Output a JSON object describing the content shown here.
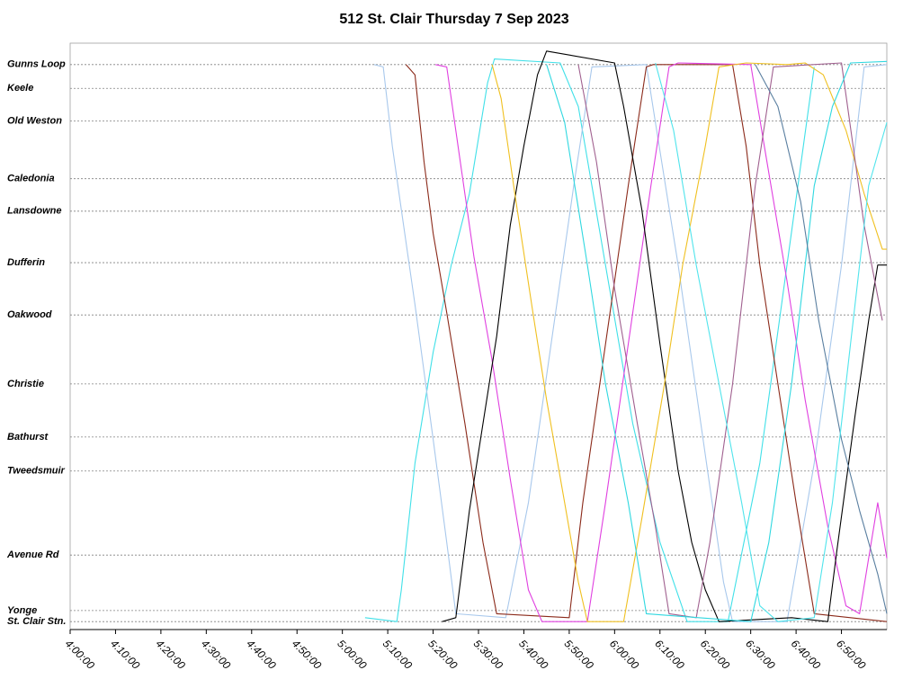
{
  "chart_data": {
    "type": "line",
    "title": "512 St. Clair Thursday 7 Sep 2023",
    "xlim": [
      240,
      420
    ],
    "xticks": [
      {
        "value": 240,
        "label": "4:00:00"
      },
      {
        "value": 250,
        "label": "4:10:00"
      },
      {
        "value": 260,
        "label": "4:20:00"
      },
      {
        "value": 270,
        "label": "4:30:00"
      },
      {
        "value": 280,
        "label": "4:40:00"
      },
      {
        "value": 290,
        "label": "4:50:00"
      },
      {
        "value": 300,
        "label": "5:00:00"
      },
      {
        "value": 310,
        "label": "5:10:00"
      },
      {
        "value": 320,
        "label": "5:20:00"
      },
      {
        "value": 330,
        "label": "5:30:00"
      },
      {
        "value": 340,
        "label": "5:40:00"
      },
      {
        "value": 350,
        "label": "5:50:00"
      },
      {
        "value": 360,
        "label": "6:00:00"
      },
      {
        "value": 370,
        "label": "6:10:00"
      },
      {
        "value": 380,
        "label": "6:20:00"
      },
      {
        "value": 390,
        "label": "6:30:00"
      },
      {
        "value": 400,
        "label": "6:40:00"
      },
      {
        "value": 410,
        "label": "6:50:00"
      }
    ],
    "ylim": [
      -0.1,
      7.3
    ],
    "yticks": [
      {
        "value": 7.03,
        "label": "Gunns Loop"
      },
      {
        "value": 6.73,
        "label": "Keele"
      },
      {
        "value": 6.32,
        "label": "Old Weston"
      },
      {
        "value": 5.59,
        "label": "Caledonia"
      },
      {
        "value": 5.18,
        "label": "Lansdowne"
      },
      {
        "value": 4.53,
        "label": "Dufferin"
      },
      {
        "value": 3.87,
        "label": "Oakwood"
      },
      {
        "value": 3.0,
        "label": "Christie"
      },
      {
        "value": 2.33,
        "label": "Bathurst"
      },
      {
        "value": 1.9,
        "label": "Tweedsmuir"
      },
      {
        "value": 0.84,
        "label": "Avenue Rd"
      },
      {
        "value": 0.14,
        "label": "Yonge"
      },
      {
        "value": 0,
        "label": "St. Clair Stn."
      }
    ],
    "grid": true,
    "series": [
      {
        "color": "#40e0e8",
        "x": [
          305,
          312,
          313,
          316,
          320,
          324,
          328,
          332,
          333.5,
          348,
          352,
          358,
          364,
          370,
          376,
          385,
          392,
          398,
          404
        ],
        "values": [
          0.05,
          0,
          0.4,
          2.0,
          3.4,
          4.5,
          5.4,
          6.8,
          7.1,
          7.05,
          6.5,
          4.5,
          2.5,
          1.0,
          0,
          0,
          2.0,
          4.5,
          7.0
        ]
      },
      {
        "color": "#a8c8ec",
        "x": [
          307,
          309,
          311,
          313,
          316,
          320,
          323,
          325,
          336,
          341,
          346,
          351,
          355,
          367,
          369,
          374,
          379,
          384,
          386,
          398,
          404,
          410,
          415,
          420
        ],
        "values": [
          7.03,
          7.0,
          6.0,
          5.2,
          4.0,
          2.3,
          1.0,
          0.1,
          0.05,
          1.5,
          3.5,
          5.5,
          7.0,
          7.03,
          6.3,
          4.5,
          2.5,
          0.5,
          0,
          0,
          2.0,
          4.5,
          7.0,
          7.03
        ]
      },
      {
        "color": "#8b2a1a",
        "x": [
          314,
          316,
          318,
          320,
          323,
          327,
          331,
          334,
          350,
          353,
          358,
          363,
          367,
          368.5,
          386,
          389,
          392,
          396,
          400,
          404,
          420
        ],
        "values": [
          7.03,
          6.9,
          5.8,
          4.9,
          3.9,
          2.5,
          1.0,
          0.1,
          0.05,
          1.5,
          3.5,
          5.5,
          7.0,
          7.03,
          7.03,
          6.0,
          4.5,
          3.0,
          1.5,
          0.1,
          0
        ]
      },
      {
        "color": "#e040e0",
        "x": [
          320.5,
          323,
          326,
          329,
          333,
          337,
          341,
          344,
          354,
          358,
          363,
          368,
          372,
          374,
          390,
          393,
          398,
          402,
          407,
          411,
          414,
          418,
          420
        ],
        "values": [
          7.03,
          7.0,
          5.8,
          4.6,
          3.3,
          1.8,
          0.4,
          0,
          0,
          1.5,
          3.5,
          5.5,
          7.0,
          7.05,
          7.03,
          6.0,
          4.3,
          2.8,
          1.2,
          0.2,
          0.1,
          1.5,
          0.8
        ]
      },
      {
        "color": "#000000",
        "x": [
          322,
          325,
          328,
          331,
          334,
          337,
          340,
          343,
          345,
          360,
          362,
          366,
          370,
          374,
          377,
          380,
          383,
          399,
          407,
          409,
          413,
          416,
          418,
          420
        ],
        "values": [
          0,
          0.05,
          1.4,
          2.5,
          3.6,
          5.0,
          6.0,
          6.9,
          7.2,
          7.05,
          6.5,
          5.2,
          3.5,
          1.9,
          1.0,
          0.4,
          0,
          0.05,
          0,
          0.9,
          2.6,
          3.8,
          4.5,
          4.5
        ]
      },
      {
        "color": "#f0c020",
        "x": [
          333,
          335,
          338,
          342,
          345,
          349,
          352,
          354,
          362,
          366,
          371,
          375,
          380,
          383,
          389,
          398,
          402,
          406,
          411,
          415,
          419,
          420
        ],
        "values": [
          7.03,
          6.6,
          5.4,
          3.9,
          2.8,
          1.5,
          0.5,
          0,
          0,
          1.3,
          3.0,
          4.5,
          6.0,
          7.0,
          7.05,
          7.03,
          7.05,
          6.9,
          6.2,
          5.4,
          4.7,
          4.7
        ]
      },
      {
        "color": "#a0608f",
        "x": [
          352,
          356,
          360,
          365,
          369,
          372,
          378,
          381,
          386,
          391,
          395,
          410,
          415,
          419
        ],
        "values": [
          7.03,
          5.8,
          4.2,
          2.5,
          1.2,
          0.1,
          0.05,
          1.0,
          3.0,
          5.5,
          7.0,
          7.05,
          5.0,
          3.8
        ]
      },
      {
        "color": "#30d8e0",
        "x": [
          345,
          349,
          354,
          358,
          363,
          367,
          390,
          394,
          399,
          404,
          408,
          412,
          420
        ],
        "values": [
          7.03,
          6.3,
          4.5,
          3.0,
          1.5,
          0.1,
          0,
          1.0,
          3.0,
          5.5,
          6.5,
          7.05,
          7.07
        ]
      },
      {
        "color": "#5a7fa0",
        "x": [
          391,
          396,
          401,
          405,
          410,
          414,
          418,
          420
        ],
        "values": [
          7.03,
          6.5,
          5.3,
          3.8,
          2.3,
          1.4,
          0.6,
          0.1
        ]
      },
      {
        "color": "#50e4ec",
        "x": [
          369,
          373,
          378,
          383,
          388,
          392,
          396,
          404,
          408,
          412,
          416,
          420
        ],
        "values": [
          7.05,
          6.2,
          4.5,
          3.0,
          1.5,
          0.2,
          0,
          0.05,
          1.5,
          3.5,
          5.5,
          6.3
        ]
      }
    ]
  }
}
